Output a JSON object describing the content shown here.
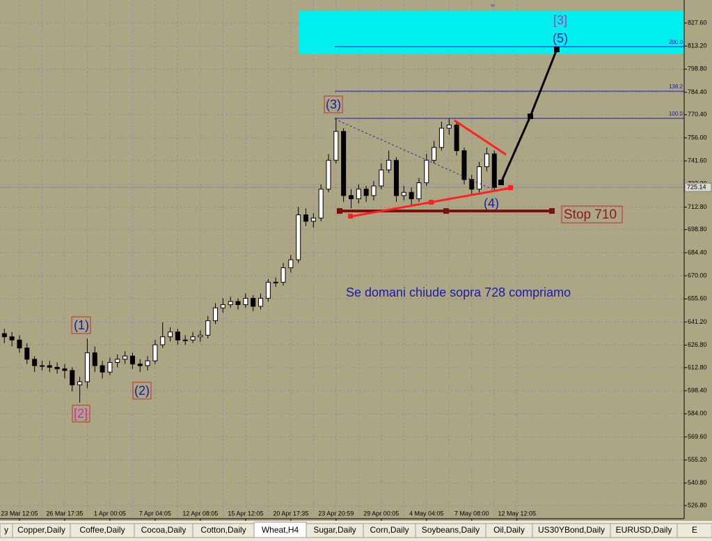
{
  "chart_data": {
    "type": "candlestick",
    "ylim": [
      518.6,
      841.9
    ],
    "yticks": [
      {
        "value": 827.6,
        "label": "827.60"
      },
      {
        "value": 813.2,
        "label": "813.20"
      },
      {
        "value": 798.8,
        "label": "798.80"
      },
      {
        "value": 784.4,
        "label": "784.40"
      },
      {
        "value": 770.4,
        "label": "770.40"
      },
      {
        "value": 756,
        "label": "756.00"
      },
      {
        "value": 741.6,
        "label": "741.60"
      },
      {
        "value": 727.2,
        "label": "727.20"
      },
      {
        "value": 712.8,
        "label": "712.80"
      },
      {
        "value": 698.8,
        "label": "698.80"
      },
      {
        "value": 684.4,
        "label": "684.40"
      },
      {
        "value": 670,
        "label": "670.00"
      },
      {
        "value": 655.6,
        "label": "655.60"
      },
      {
        "value": 641.2,
        "label": "641.20"
      },
      {
        "value": 626.8,
        "label": "626.80"
      },
      {
        "value": 612.8,
        "label": "612.80"
      },
      {
        "value": 598.4,
        "label": "598.40"
      },
      {
        "value": 584,
        "label": "584.00"
      },
      {
        "value": 569.6,
        "label": "569.60"
      },
      {
        "value": 555.2,
        "label": "555.20"
      },
      {
        "value": 540.8,
        "label": "540.80"
      },
      {
        "value": 526.8,
        "label": "526.80"
      }
    ],
    "grid": true,
    "current_price": 725.14,
    "categories": [
      null,
      null,
      "23 Mar 12:05",
      null,
      null,
      null,
      null,
      null,
      "26 Mar 17:35",
      null,
      null,
      null,
      null,
      null,
      "1 Apr 00:05",
      null,
      null,
      null,
      null,
      null,
      "7 Apr 04:05",
      null,
      null,
      null,
      null,
      null,
      "12 Apr 08:05",
      null,
      null,
      null,
      null,
      null,
      "15 Apr 12:05",
      null,
      null,
      null,
      null,
      null,
      "20 Apr 17:35",
      null,
      null,
      null,
      null,
      null,
      "23 Apr 20:59",
      null,
      null,
      null,
      null,
      null,
      "29 Apr 00:05",
      null,
      null,
      null,
      null,
      null,
      "4 May 04:05",
      null,
      null,
      null,
      null,
      null,
      "7 May 08:00",
      null,
      null,
      null,
      null,
      null,
      "12 May 12:05"
    ],
    "open": [
      634,
      632,
      630,
      625,
      618,
      614,
      614,
      613,
      612,
      611,
      602,
      604,
      622,
      614,
      610,
      616,
      618,
      620,
      615,
      614,
      617,
      627,
      632,
      635,
      630,
      630,
      632,
      633,
      642,
      650,
      652,
      654,
      652,
      656,
      651,
      656,
      666,
      666,
      675,
      680,
      708,
      704,
      706,
      724,
      742,
      760,
      720,
      718,
      724,
      720,
      726,
      736,
      742,
      720,
      722,
      718,
      728,
      742,
      750,
      762,
      764,
      748,
      730,
      724,
      738,
      746,
      null,
      null,
      null
    ],
    "high": [
      637,
      635,
      633,
      628,
      620,
      617,
      617,
      616,
      615,
      613,
      607,
      631,
      626,
      617,
      619,
      621,
      623,
      622,
      618,
      620,
      630,
      641,
      638,
      637,
      633,
      635,
      636,
      645,
      653,
      656,
      657,
      656,
      659,
      658,
      659,
      668,
      669,
      678,
      683,
      713,
      712,
      709,
      727,
      746,
      768,
      762,
      724,
      727,
      726,
      729,
      740,
      748,
      744,
      726,
      725,
      731,
      746,
      754,
      766,
      768,
      766,
      750,
      733,
      741,
      750,
      748,
      null,
      null,
      null
    ],
    "low": [
      628,
      626,
      622,
      615,
      610,
      611,
      610,
      609,
      606,
      598,
      591,
      600,
      610,
      606,
      608,
      613,
      615,
      612,
      610,
      611,
      615,
      625,
      629,
      627,
      627,
      628,
      629,
      631,
      640,
      647,
      650,
      649,
      650,
      648,
      649,
      654,
      663,
      664,
      672,
      678,
      701,
      700,
      704,
      722,
      740,
      716,
      712,
      715,
      716,
      717,
      724,
      734,
      716,
      717,
      714,
      716,
      726,
      740,
      748,
      758,
      745,
      727,
      721,
      722,
      735,
      723,
      null,
      null,
      null
    ],
    "close": [
      632,
      630,
      625,
      618,
      614,
      614,
      613,
      612,
      611,
      602,
      604,
      622,
      614,
      610,
      616,
      618,
      620,
      615,
      614,
      617,
      627,
      632,
      635,
      630,
      630,
      632,
      633,
      642,
      650,
      652,
      654,
      652,
      656,
      651,
      656,
      666,
      666,
      675,
      680,
      708,
      704,
      706,
      724,
      742,
      760,
      720,
      718,
      724,
      720,
      726,
      736,
      742,
      720,
      722,
      718,
      728,
      742,
      750,
      762,
      764,
      748,
      730,
      724,
      738,
      746,
      725,
      null,
      null,
      null
    ]
  },
  "annotations": {
    "wave1": "(1)",
    "wave2a": "[2]",
    "wave2": "(2)",
    "wave3": "(3)",
    "wave4": "(4)",
    "wave3a": "[3]",
    "wave5": "(5)",
    "stop": "Stop 710",
    "message": "Se domani chiude sopra 728 compriamo",
    "fib200": "200.0",
    "fib138": "138.2",
    "fib100": "100.0"
  },
  "tabs": [
    "y",
    "Copper,Daily",
    "Coffee,Daily",
    "Cocoa,Daily",
    "Cotton,Daily",
    "Wheat,H4",
    "Sugar,Daily",
    "Corn,Daily",
    "Soybeans,Daily",
    "Oil,Daily",
    "US30YBond,Daily",
    "EURUSD,Daily",
    "E"
  ],
  "active_tab": 5
}
